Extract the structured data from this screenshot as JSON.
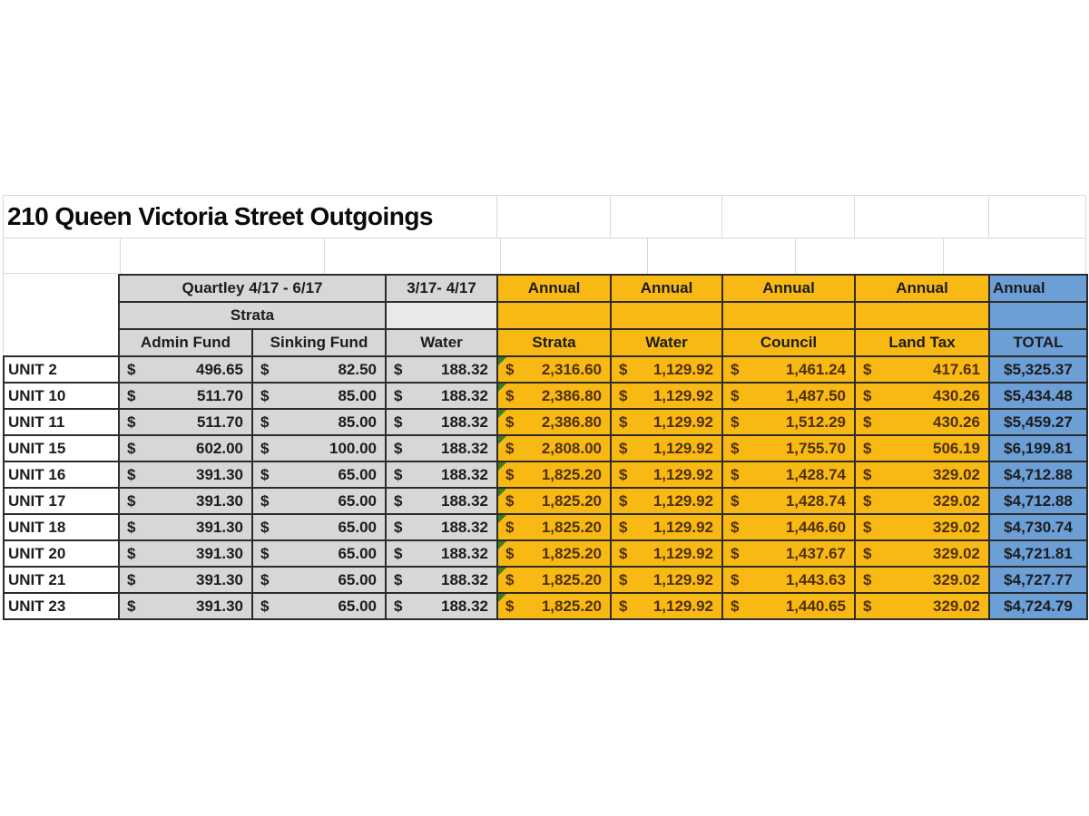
{
  "title": "210 Queen Victoria Street Outgoings",
  "currency_symbol": "$",
  "header": {
    "quarterly_label": "Quartley 4/17 - 6/17",
    "water_period_label": "3/17- 4/17",
    "annual_label": "Annual",
    "strata_group_label": "Strata",
    "columns": [
      "Admin Fund",
      "Sinking Fund",
      "Water",
      "Strata",
      "Water",
      "Council",
      "Land Tax",
      "TOTAL"
    ]
  },
  "rows": [
    {
      "unit": "UNIT 2",
      "admin_fund": "496.65",
      "sinking_fund": "82.50",
      "water": "188.32",
      "annual_strata": "2,316.60",
      "annual_water": "1,129.92",
      "annual_council": "1,461.24",
      "annual_land_tax": "417.61",
      "annual_total": "$5,325.37"
    },
    {
      "unit": "UNIT 10",
      "admin_fund": "511.70",
      "sinking_fund": "85.00",
      "water": "188.32",
      "annual_strata": "2,386.80",
      "annual_water": "1,129.92",
      "annual_council": "1,487.50",
      "annual_land_tax": "430.26",
      "annual_total": "$5,434.48"
    },
    {
      "unit": "UNIT 11",
      "admin_fund": "511.70",
      "sinking_fund": "85.00",
      "water": "188.32",
      "annual_strata": "2,386.80",
      "annual_water": "1,129.92",
      "annual_council": "1,512.29",
      "annual_land_tax": "430.26",
      "annual_total": "$5,459.27"
    },
    {
      "unit": "UNIT 15",
      "admin_fund": "602.00",
      "sinking_fund": "100.00",
      "water": "188.32",
      "annual_strata": "2,808.00",
      "annual_water": "1,129.92",
      "annual_council": "1,755.70",
      "annual_land_tax": "506.19",
      "annual_total": "$6,199.81"
    },
    {
      "unit": "UNIT 16",
      "admin_fund": "391.30",
      "sinking_fund": "65.00",
      "water": "188.32",
      "annual_strata": "1,825.20",
      "annual_water": "1,129.92",
      "annual_council": "1,428.74",
      "annual_land_tax": "329.02",
      "annual_total": "$4,712.88"
    },
    {
      "unit": "UNIT 17",
      "admin_fund": "391.30",
      "sinking_fund": "65.00",
      "water": "188.32",
      "annual_strata": "1,825.20",
      "annual_water": "1,129.92",
      "annual_council": "1,428.74",
      "annual_land_tax": "329.02",
      "annual_total": "$4,712.88"
    },
    {
      "unit": "UNIT 18",
      "admin_fund": "391.30",
      "sinking_fund": "65.00",
      "water": "188.32",
      "annual_strata": "1,825.20",
      "annual_water": "1,129.92",
      "annual_council": "1,446.60",
      "annual_land_tax": "329.02",
      "annual_total": "$4,730.74"
    },
    {
      "unit": "UNIT 20",
      "admin_fund": "391.30",
      "sinking_fund": "65.00",
      "water": "188.32",
      "annual_strata": "1,825.20",
      "annual_water": "1,129.92",
      "annual_council": "1,437.67",
      "annual_land_tax": "329.02",
      "annual_total": "$4,721.81"
    },
    {
      "unit": "UNIT 21",
      "admin_fund": "391.30",
      "sinking_fund": "65.00",
      "water": "188.32",
      "annual_strata": "1,825.20",
      "annual_water": "1,129.92",
      "annual_council": "1,443.63",
      "annual_land_tax": "329.02",
      "annual_total": "$4,727.77"
    },
    {
      "unit": "UNIT 23",
      "admin_fund": "391.30",
      "sinking_fund": "65.00",
      "water": "188.32",
      "annual_strata": "1,825.20",
      "annual_water": "1,129.92",
      "annual_council": "1,440.65",
      "annual_land_tax": "329.02",
      "annual_total": "$4,724.79"
    }
  ],
  "colors": {
    "quarterly_fill": "#d7d7d7",
    "annual_fill": "#f9b914",
    "total_fill": "#6b9fd6",
    "total_text": "#16365c",
    "border": "#2b2b2b",
    "error_indicator_green": "#3e7d1d"
  }
}
